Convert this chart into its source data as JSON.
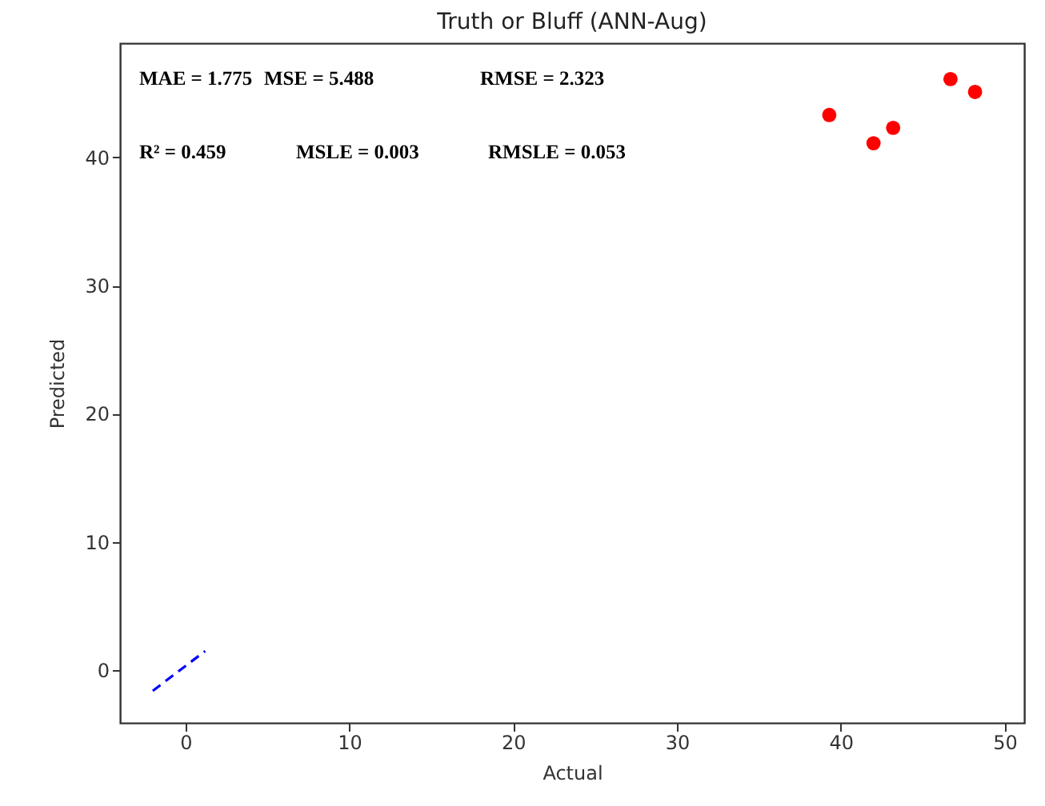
{
  "chart_data": {
    "type": "scatter",
    "title": "Truth or Bluff (ANN-Aug)",
    "xlabel": "Actual",
    "ylabel": "Predicted",
    "xlim": [
      -4,
      51.2
    ],
    "ylim": [
      -4.1,
      48.9
    ],
    "xticks": [
      0,
      10,
      20,
      30,
      40,
      50
    ],
    "yticks": [
      0,
      10,
      20,
      30,
      40
    ],
    "grid": false,
    "marker": "circle",
    "series": [
      {
        "color": "#ff0000",
        "x": [
          39.3,
          42.0,
          43.2,
          46.7,
          48.2
        ],
        "values": [
          43.3,
          41.1,
          42.3,
          46.1,
          45.1
        ]
      },
      {
        "type": "line",
        "color": "#0000ff",
        "line_style": "dashed",
        "marker": "none",
        "x": [
          -2.0,
          1.2
        ],
        "values": [
          -1.6,
          1.5
        ]
      }
    ],
    "annotations": [
      "MAE = 1.775",
      "MSE = 5.488",
      "RMSE = 2.323",
      "R² = 0.459",
      "MSLE = 0.003",
      "RMSLE = 0.053"
    ]
  }
}
